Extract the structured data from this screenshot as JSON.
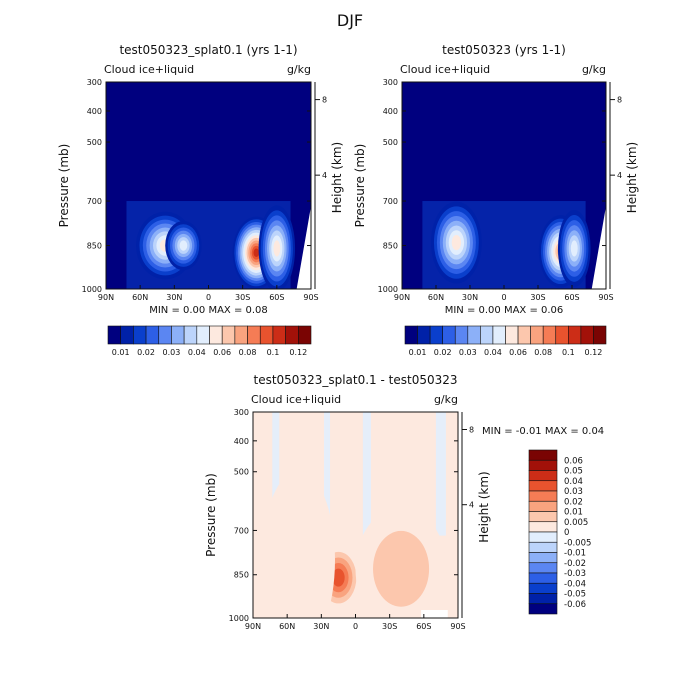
{
  "page_title": "DJF",
  "chart_data": [
    {
      "type": "heatmap",
      "title": "test050323_splat0.1 (yrs 1-1)",
      "variable": "Cloud ice+liquid",
      "units": "g/kg",
      "ylabel": "Pressure (mb)",
      "ylabel_right": "Height (km)",
      "x_ticks": [
        "90N",
        "60N",
        "30N",
        "0",
        "30S",
        "60S",
        "90S"
      ],
      "y_ticks": [
        "300",
        "400",
        "500",
        "700",
        "850",
        "1000"
      ],
      "height_ticks": [
        "8",
        "4"
      ],
      "ylim": [
        1000,
        300
      ],
      "stats": {
        "min_label": "MIN =",
        "min": "0.00",
        "max_label": "MAX =",
        "max": "0.08"
      },
      "features": [
        {
          "lat": 38,
          "p": 850,
          "value": 0.045,
          "lat_spread": 16,
          "p_spread": 60
        },
        {
          "lat": 22,
          "p": 850,
          "value": 0.035,
          "lat_spread": 10,
          "p_spread": 40
        },
        {
          "lat": -42,
          "p": 875,
          "value": 0.08,
          "lat_spread": 13,
          "p_spread": 65
        },
        {
          "lat": -60,
          "p": 860,
          "value": 0.04,
          "lat_spread": 10,
          "p_spread": 80
        }
      ],
      "colorbar": {
        "labels": [
          "0.01",
          "0.02",
          "0.03",
          "0.04",
          "0.06",
          "0.08",
          "0.1",
          "0.12"
        ],
        "colors": [
          "#00007f",
          "#0021a8",
          "#0a3fcc",
          "#2d5fe6",
          "#5b86f2",
          "#8cb0f8",
          "#bcd4fb",
          "#e2eefd",
          "#fde9df",
          "#fcc7ad",
          "#f9a37f",
          "#f57c55",
          "#e8532e",
          "#cc2d17",
          "#a21109",
          "#7a0403"
        ]
      }
    },
    {
      "type": "heatmap",
      "title": "test050323 (yrs 1-1)",
      "variable": "Cloud ice+liquid",
      "units": "g/kg",
      "ylabel": "Pressure (mb)",
      "ylabel_right": "Height (km)",
      "x_ticks": [
        "90N",
        "60N",
        "30N",
        "0",
        "30S",
        "60S",
        "90S"
      ],
      "y_ticks": [
        "300",
        "400",
        "500",
        "700",
        "850",
        "1000"
      ],
      "height_ticks": [
        "8",
        "4"
      ],
      "ylim": [
        1000,
        300
      ],
      "stats": {
        "min_label": "MIN =",
        "min": "0.00",
        "max_label": "MAX =",
        "max": "0.06"
      },
      "features": [
        {
          "lat": 42,
          "p": 840,
          "value": 0.045,
          "lat_spread": 14,
          "p_spread": 75
        },
        {
          "lat": -50,
          "p": 870,
          "value": 0.06,
          "lat_spread": 12,
          "p_spread": 65
        },
        {
          "lat": -62,
          "p": 860,
          "value": 0.035,
          "lat_spread": 9,
          "p_spread": 70
        }
      ],
      "colorbar": {
        "labels": [
          "0.01",
          "0.02",
          "0.03",
          "0.04",
          "0.06",
          "0.08",
          "0.1",
          "0.12"
        ],
        "colors": [
          "#00007f",
          "#0021a8",
          "#0a3fcc",
          "#2d5fe6",
          "#5b86f2",
          "#8cb0f8",
          "#bcd4fb",
          "#e2eefd",
          "#fde9df",
          "#fcc7ad",
          "#f9a37f",
          "#f57c55",
          "#e8532e",
          "#cc2d17",
          "#a21109",
          "#7a0403"
        ]
      }
    },
    {
      "type": "heatmap",
      "title": "test050323_splat0.1 - test050323",
      "variable": "Cloud ice+liquid",
      "units": "g/kg",
      "ylabel": "Pressure (mb)",
      "ylabel_right": "Height (km)",
      "x_ticks": [
        "90N",
        "60N",
        "30N",
        "0",
        "30S",
        "60S",
        "90S"
      ],
      "y_ticks": [
        "300",
        "400",
        "500",
        "700",
        "850",
        "1000"
      ],
      "height_ticks": [
        "8",
        "4"
      ],
      "ylim": [
        1000,
        300
      ],
      "stats": {
        "min_label": "MIN =",
        "min": "-0.01",
        "max_label": "MAX =",
        "max": "0.04"
      },
      "features": [
        {
          "lat": 15,
          "p": 860,
          "value": 0.035,
          "lat_spread": 12,
          "p_spread": 55
        },
        {
          "lat": -30,
          "p": 860,
          "value": 0.03,
          "lat_spread": 12,
          "p_spread": 55
        },
        {
          "lat": -40,
          "p": 830,
          "value": 0.01,
          "lat_spread": 25,
          "p_spread": 120
        },
        {
          "lat": 50,
          "p": 800,
          "value": 0.006,
          "lat_spread": 20,
          "p_spread": 180
        }
      ],
      "colorbar": {
        "labels": [
          "0.06",
          "0.05",
          "0.04",
          "0.03",
          "0.02",
          "0.01",
          "0.005",
          "0",
          "-0.005",
          "-0.01",
          "-0.02",
          "-0.03",
          "-0.04",
          "-0.05",
          "-0.06"
        ],
        "colors": [
          "#7a0403",
          "#a21109",
          "#cc2d17",
          "#e8532e",
          "#f57c55",
          "#f9a37f",
          "#fcc7ad",
          "#fde9df",
          "#e2eefd",
          "#bcd4fb",
          "#8cb0f8",
          "#5b86f2",
          "#2d5fe6",
          "#0a3fcc",
          "#0021a8",
          "#00007f"
        ]
      }
    }
  ]
}
